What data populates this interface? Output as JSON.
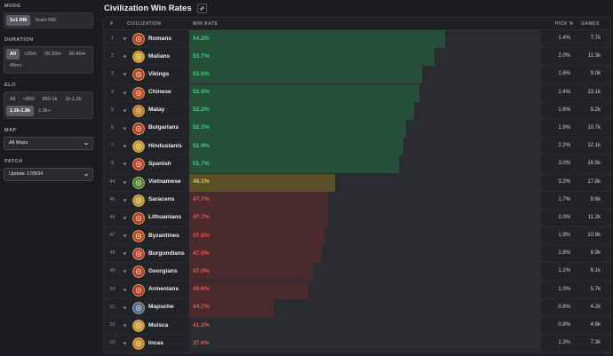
{
  "sidebar": {
    "mode": {
      "label": "MODE",
      "options": [
        "1v1 RM",
        "Team RM"
      ],
      "active": 0
    },
    "duration": {
      "label": "DURATION",
      "options": [
        "All",
        "<20m",
        "20-30m",
        "30-45m",
        "45m+"
      ],
      "active": 0
    },
    "elo": {
      "label": "ELO",
      "options": [
        "All",
        "<850",
        "850-1k",
        "1k-1.2k",
        "1.2k-1.9k",
        "1.9k+"
      ],
      "active": 4
    },
    "map": {
      "label": "MAP",
      "value": "All Maps"
    },
    "patch": {
      "label": "PATCH",
      "value": "Update 170934"
    }
  },
  "header": {
    "title": "Civilization Win Rates",
    "link_icon": "link-icon"
  },
  "table": {
    "columns": {
      "rank": "#",
      "civ": "CIVILIZATION",
      "win_rate": "WIN RATE",
      "pick": "PICK %",
      "games": "GAMES"
    },
    "rows": [
      {
        "rank": "1",
        "name": "Romans",
        "win_rate": "54.2%",
        "pick": "1.4%",
        "games": "7.7k",
        "bar": 0.728,
        "tone": "green",
        "icon": "#b83a2a"
      },
      {
        "rank": "2",
        "name": "Malians",
        "win_rate": "53.7%",
        "pick": "2.0%",
        "games": "11.3k",
        "bar": 0.697,
        "tone": "green",
        "icon": "#c79a2e"
      },
      {
        "rank": "3",
        "name": "Vikings",
        "win_rate": "53.0%",
        "pick": "1.6%",
        "games": "9.0k",
        "bar": 0.662,
        "tone": "green",
        "icon": "#b8432c"
      },
      {
        "rank": "4",
        "name": "Chinese",
        "win_rate": "52.6%",
        "pick": "2.4%",
        "games": "13.1k",
        "bar": 0.654,
        "tone": "green",
        "icon": "#c4432b"
      },
      {
        "rank": "5",
        "name": "Malay",
        "win_rate": "52.2%",
        "pick": "1.6%",
        "games": "9.2k",
        "bar": 0.639,
        "tone": "green",
        "icon": "#bd7a2a"
      },
      {
        "rank": "6",
        "name": "Bulgarians",
        "win_rate": "52.1%",
        "pick": "1.9%",
        "games": "10.7k",
        "bar": 0.616,
        "tone": "green",
        "icon": "#b33a2b"
      },
      {
        "rank": "7",
        "name": "Hindustanis",
        "win_rate": "51.9%",
        "pick": "2.2%",
        "games": "12.1k",
        "bar": 0.608,
        "tone": "green",
        "icon": "#c49a34"
      },
      {
        "rank": "8",
        "name": "Spanish",
        "win_rate": "51.7%",
        "pick": "3.0%",
        "games": "16.5k",
        "bar": 0.596,
        "tone": "green",
        "icon": "#c43a32"
      },
      {
        "rank": "44",
        "name": "Vietnamese",
        "win_rate": "48.1%",
        "pick": "3.2%",
        "games": "17.8k",
        "bar": 0.414,
        "tone": "yellow",
        "icon": "#3f8a3a"
      },
      {
        "rank": "45",
        "name": "Saracens",
        "win_rate": "47.7%",
        "pick": "1.7%",
        "games": "9.6k",
        "bar": 0.394,
        "tone": "red",
        "icon": "#b89a3c"
      },
      {
        "rank": "46",
        "name": "Lithuanians",
        "win_rate": "47.7%",
        "pick": "2.0%",
        "games": "11.2k",
        "bar": 0.394,
        "tone": "red",
        "icon": "#b73a2c"
      },
      {
        "rank": "47",
        "name": "Byzantines",
        "win_rate": "47.6%",
        "pick": "1.9%",
        "games": "10.9k",
        "bar": 0.384,
        "tone": "red",
        "icon": "#b8482c"
      },
      {
        "rank": "48",
        "name": "Burgundians",
        "win_rate": "47.5%",
        "pick": "1.8%",
        "games": "9.9k",
        "bar": 0.376,
        "tone": "red",
        "icon": "#c2383a"
      },
      {
        "rank": "49",
        "name": "Georgians",
        "win_rate": "47.0%",
        "pick": "1.1%",
        "games": "6.1k",
        "bar": 0.351,
        "tone": "red",
        "icon": "#b23a30"
      },
      {
        "rank": "50",
        "name": "Armenians",
        "win_rate": "46.6%",
        "pick": "1.0%",
        "games": "5.7k",
        "bar": 0.338,
        "tone": "red",
        "icon": "#b7332c"
      },
      {
        "rank": "51",
        "name": "Mapuche",
        "win_rate": "44.7%",
        "pick": "0.8%",
        "games": "4.2k",
        "bar": 0.24,
        "tone": "red",
        "icon": "#3a6aa8"
      },
      {
        "rank": "52",
        "name": "Muisca",
        "win_rate": "41.2%",
        "pick": "0.8%",
        "games": "4.6k",
        "bar": 0.0,
        "tone": "red",
        "icon": "#c99a36"
      },
      {
        "rank": "53",
        "name": "Incas",
        "win_rate": "37.6%",
        "pick": "1.3%",
        "games": "7.3k",
        "bar": 0.0,
        "tone": "red",
        "icon": "#c8862e"
      }
    ]
  },
  "colors": {
    "green_bar": "#264f3a",
    "green_text": "#3fd07a",
    "yellow_bar": "#5a5027",
    "yellow_text": "#e8c23a",
    "red_bar": "#4a2a2c",
    "red_text": "#e8564e"
  }
}
